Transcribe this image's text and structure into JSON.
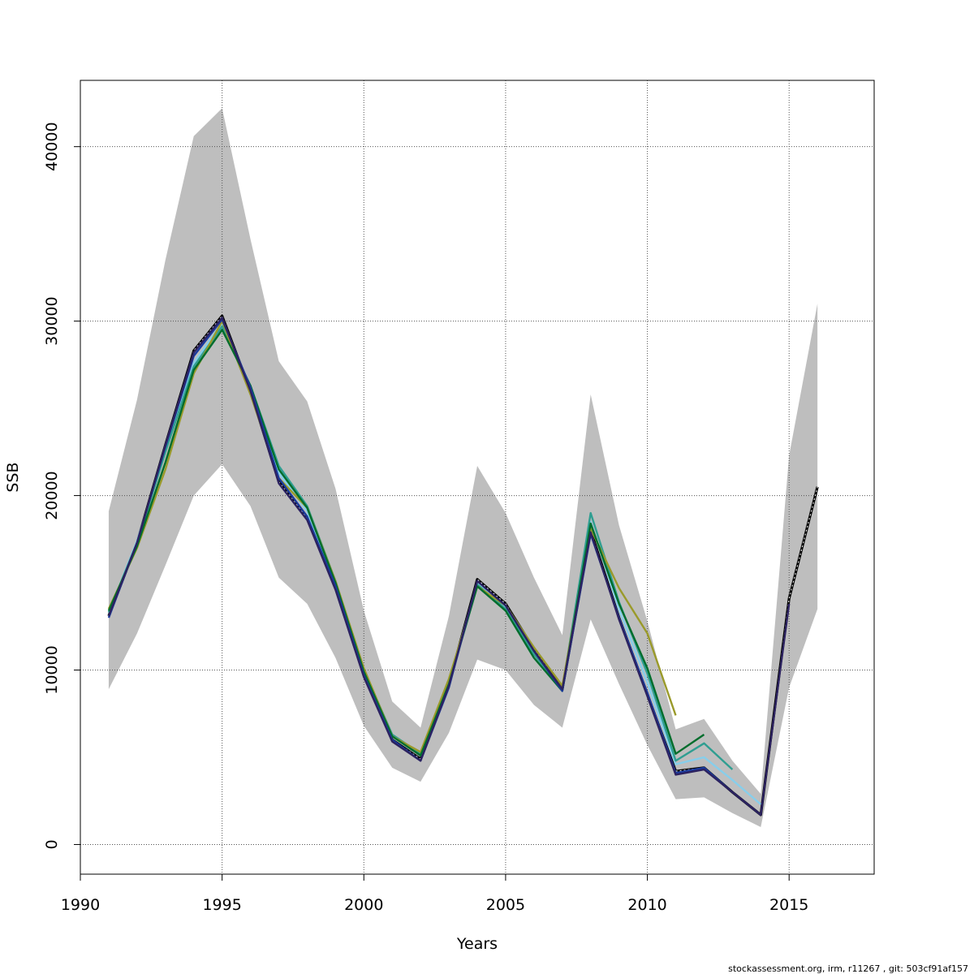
{
  "chart_data": {
    "type": "line",
    "xlabel": "Years",
    "ylabel": "SSB",
    "xlim": [
      1990,
      2018
    ],
    "ylim": [
      -1700,
      43800
    ],
    "xticks": [
      1990,
      1995,
      2000,
      2005,
      2010,
      2015
    ],
    "yticks": [
      0,
      10000,
      20000,
      30000,
      40000
    ],
    "grid": true,
    "band_color": "#bebebe",
    "confidence_band": {
      "x": [
        1991,
        1992,
        1993,
        1994,
        1995,
        1996,
        1997,
        1998,
        1999,
        2000,
        2001,
        2002,
        2003,
        2004,
        2005,
        2006,
        2007,
        2008,
        2009,
        2010,
        2011,
        2012,
        2013,
        2014,
        2015,
        2016
      ],
      "upper": [
        19100,
        25500,
        33500,
        40600,
        42200,
        34700,
        27700,
        25400,
        20400,
        13400,
        8200,
        6700,
        13100,
        21700,
        19000,
        15300,
        12000,
        25800,
        18300,
        12800,
        6600,
        7200,
        4800,
        2900,
        22300,
        31000
      ],
      "lower": [
        8900,
        12100,
        16000,
        20000,
        21800,
        19400,
        15300,
        13800,
        10700,
        6800,
        4400,
        3600,
        6400,
        10600,
        10000,
        8000,
        6700,
        12900,
        9200,
        5700,
        2600,
        2700,
        1800,
        1000,
        9000,
        13500
      ]
    },
    "series": [
      {
        "color": "#000000",
        "dashed": true,
        "x": [
          1991,
          1992,
          1993,
          1994,
          1995,
          1996,
          1997,
          1998,
          1999,
          2000,
          2001,
          2002,
          2003,
          2004,
          2005,
          2006,
          2007,
          2008,
          2009,
          2010,
          2011,
          2012,
          2013,
          2014,
          2015,
          2016
        ],
        "values": [
          13100,
          17300,
          22900,
          28300,
          30300,
          26000,
          20800,
          18700,
          14700,
          9700,
          6000,
          4900,
          9200,
          15200,
          13800,
          11200,
          8900,
          18000,
          13000,
          8600,
          4200,
          4400,
          3000,
          1700,
          14100,
          20500
        ]
      },
      {
        "color": "#87ceeb",
        "x": [
          1991,
          1992,
          1993,
          1994,
          1995,
          1996,
          1997,
          1998,
          1999,
          2000,
          2001,
          2002,
          2003,
          2004,
          2005,
          2006,
          2007,
          2008,
          2009,
          2010,
          2011,
          2012,
          2013,
          2014
        ],
        "values": [
          13300,
          17400,
          22600,
          27600,
          29900,
          26100,
          21300,
          19100,
          15000,
          9900,
          6200,
          5100,
          9300,
          15000,
          13600,
          11000,
          8900,
          18500,
          13500,
          9300,
          4600,
          5000,
          3700,
          2300
        ]
      },
      {
        "color": "#2f9e91",
        "x": [
          1991,
          1992,
          1993,
          1994,
          1995,
          1996,
          1997,
          1998,
          1999,
          2000,
          2001,
          2002,
          2003,
          2004,
          2005,
          2006,
          2007,
          2008,
          2009,
          2010,
          2011,
          2012,
          2013
        ],
        "values": [
          13300,
          17300,
          22500,
          27400,
          29700,
          26300,
          21700,
          19400,
          15100,
          10000,
          6300,
          5200,
          9300,
          14900,
          13500,
          10900,
          8900,
          19000,
          13900,
          9800,
          4800,
          5800,
          4300
        ]
      },
      {
        "color": "#9a9a2a",
        "x": [
          1991,
          1992,
          1993,
          1994,
          1995,
          1996,
          1997,
          1998,
          1999,
          2000,
          2001,
          2002,
          2003,
          2004,
          2005,
          2006,
          2007,
          2008,
          2009,
          2010,
          2011
        ],
        "values": [
          13500,
          17000,
          21500,
          27000,
          30000,
          25800,
          21000,
          19300,
          15100,
          10100,
          6200,
          5300,
          9500,
          14800,
          13700,
          11300,
          9100,
          18100,
          14700,
          12100,
          7400
        ]
      },
      {
        "color": "#006d2c",
        "x": [
          1991,
          1992,
          1993,
          1994,
          1995,
          1996,
          1997,
          1998,
          1999,
          2000,
          2001,
          2002,
          2003,
          2004,
          2005,
          2006,
          2007,
          2008,
          2009,
          2010,
          2011,
          2012
        ],
        "values": [
          13400,
          17100,
          21900,
          27200,
          29500,
          26300,
          21500,
          19300,
          15000,
          9900,
          6200,
          5100,
          9200,
          14800,
          13400,
          10700,
          8800,
          18400,
          13800,
          10100,
          5200,
          6300
        ]
      },
      {
        "color": "#1a3a9e",
        "x": [
          1991,
          1992,
          1993,
          1994,
          1995,
          1996,
          1997,
          1998,
          1999,
          2000,
          2001,
          2002,
          2003,
          2004,
          2005,
          2006,
          2007,
          2008,
          2009,
          2010,
          2011,
          2012,
          2013,
          2014
        ],
        "values": [
          13000,
          17300,
          22800,
          28000,
          30100,
          26200,
          21000,
          18800,
          14800,
          9700,
          6000,
          4800,
          9000,
          15100,
          13700,
          11100,
          8800,
          17800,
          13000,
          8700,
          4100,
          4400,
          3000,
          1700
        ]
      },
      {
        "color": "#2c2260",
        "x": [
          1991,
          1992,
          1993,
          1994,
          1995,
          1996,
          1997,
          1998,
          1999,
          2000,
          2001,
          2002,
          2003,
          2004,
          2005,
          2006,
          2007,
          2008,
          2009,
          2010,
          2011,
          2012,
          2013,
          2014,
          2015
        ],
        "values": [
          13100,
          17300,
          22900,
          28200,
          30200,
          26000,
          20700,
          18600,
          14600,
          9600,
          5900,
          4800,
          9100,
          15100,
          13700,
          11100,
          8900,
          17900,
          12900,
          8500,
          4000,
          4300,
          3000,
          1700,
          13800
        ]
      }
    ]
  },
  "footer_text": "stockassessment.org, irm, r11267 , git: 503cf91af157"
}
